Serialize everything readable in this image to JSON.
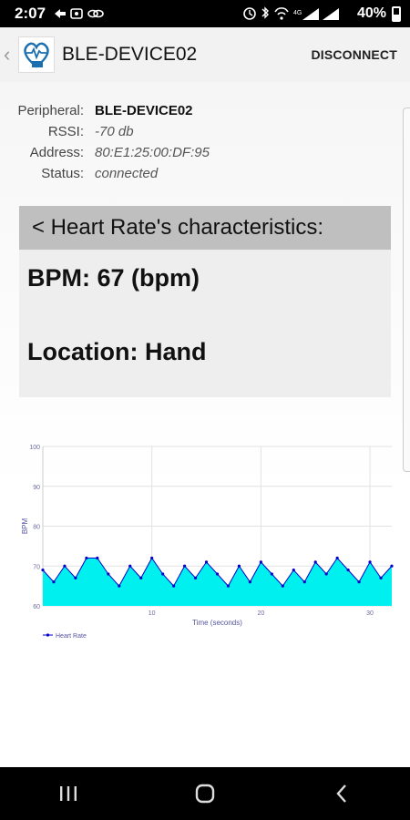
{
  "status_bar": {
    "time": "2:07",
    "battery": "40%"
  },
  "app_bar": {
    "title": "BLE-DEVICE02",
    "disconnect_label": "DISCONNECT"
  },
  "device_info": {
    "peripheral_label": "Peripheral:",
    "peripheral_value": "BLE-DEVICE02",
    "rssi_label": "RSSI:",
    "rssi_value": "-70 db",
    "address_label": "Address:",
    "address_value": "80:E1:25:00:DF:95",
    "status_label": "Status:",
    "status_value": "connected"
  },
  "card": {
    "header": "<  Heart Rate's characteristics:",
    "bpm": "BPM: 67 (bpm)",
    "location": "Location: Hand"
  },
  "chart_data": {
    "type": "area",
    "xlabel": "Time (seconds)",
    "ylabel": "BPM",
    "xlim": [
      0,
      32
    ],
    "ylim": [
      60,
      100
    ],
    "x_ticks": [
      10,
      20,
      30
    ],
    "y_ticks": [
      60,
      70,
      80,
      90,
      100
    ],
    "grid": true,
    "legend": "bottom-left",
    "fill_color": "#00f0f0",
    "line_color": "#0000cc",
    "series": [
      {
        "name": "Heart Rate",
        "x": [
          0,
          1,
          2,
          3,
          4,
          5,
          6,
          7,
          8,
          9,
          10,
          11,
          12,
          13,
          14,
          15,
          16,
          17,
          18,
          19,
          20,
          21,
          22,
          23,
          24,
          25,
          26,
          27,
          28,
          29,
          30,
          31,
          32
        ],
        "y": [
          69,
          66,
          70,
          67,
          72,
          72,
          68,
          65,
          70,
          67,
          72,
          68,
          65,
          70,
          67,
          71,
          68,
          65,
          70,
          66,
          71,
          68,
          65,
          69,
          66,
          71,
          68,
          72,
          69,
          66,
          71,
          67,
          70
        ]
      }
    ]
  }
}
